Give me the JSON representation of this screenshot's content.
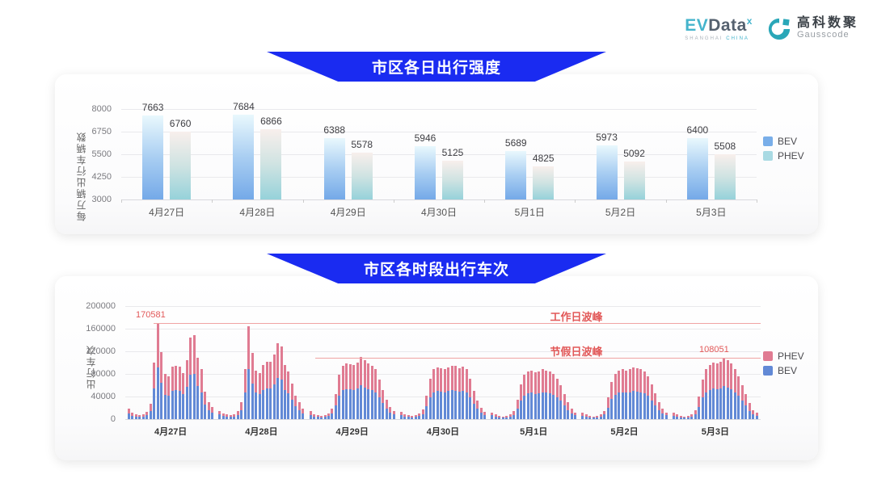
{
  "header": {
    "evdata": {
      "ev": "EV",
      "data": "Data",
      "sup": "x",
      "sub_left": "SHANGHAI",
      "sub_right": "CHINA"
    },
    "gausscode": {
      "cn_name": "高科数聚",
      "en_name": "Gausscode"
    }
  },
  "colors": {
    "banner_blue": "#1a2bf1",
    "annotation_red": "#e25858",
    "annotation_line_red": "#f0a3a3"
  },
  "chart_data": [
    {
      "type": "bar",
      "title": "市区各日出行强度",
      "ylabel": "每万辆出行车辆数",
      "ylim": [
        3000,
        8000
      ],
      "yticks": [
        3000,
        4250,
        5500,
        6750,
        8000
      ],
      "grid": true,
      "legend_position": "right",
      "categories": [
        "4月27日",
        "4月28日",
        "4月29日",
        "4月30日",
        "5月1日",
        "5月2日",
        "5月3日"
      ],
      "series": [
        {
          "name": "BEV",
          "values": [
            7663,
            7684,
            6388,
            5946,
            5689,
            5973,
            6400
          ]
        },
        {
          "name": "PHEV",
          "values": [
            6760,
            6866,
            5578,
            5125,
            4825,
            5092,
            5508
          ]
        }
      ],
      "legend": [
        {
          "name": "BEV",
          "color": "#79aee9"
        },
        {
          "name": "PHEV",
          "color": "#a9dae3"
        }
      ],
      "bev_gradient": [
        "#e9f8fd",
        "#a9cef2",
        "#74a9e8"
      ],
      "phev_gradient": [
        "#f8efec",
        "#cfe3e2",
        "#96d2da"
      ]
    },
    {
      "type": "bar",
      "stacked": true,
      "title": "市区各时段出行车次",
      "ylabel": "出行车次",
      "ylim": [
        0,
        200000
      ],
      "yticks": [
        0,
        40000,
        80000,
        120000,
        160000,
        200000
      ],
      "grid": true,
      "legend_position": "right",
      "x_unit": "hour-of-day, 24 bars per date",
      "legend": [
        {
          "name": "PHEV",
          "color": "#e07b92"
        },
        {
          "name": "BEV",
          "color": "#6289d6"
        }
      ],
      "annotations": [
        {
          "text": "工作日波峰",
          "value": 170581,
          "value_label": "170581"
        },
        {
          "text": "节假日波峰",
          "value": 108051,
          "value_label": "108051"
        }
      ],
      "days": [
        {
          "label": "4月27日",
          "bev": [
            9500,
            6000,
            4500,
            4000,
            4500,
            7000,
            14500,
            54000,
            92000,
            64000,
            43000,
            41000,
            50000,
            51500,
            50000,
            44500,
            57000,
            78500,
            80000,
            58500,
            47500,
            26000,
            16000,
            12000
          ],
          "phev": [
            8500,
            5000,
            3500,
            3000,
            3500,
            6000,
            12500,
            46000,
            78581,
            55000,
            37000,
            35000,
            43000,
            43500,
            43000,
            37500,
            48000,
            66500,
            68000,
            49500,
            40500,
            22000,
            14000,
            10000
          ]
        },
        {
          "label": "4月28日",
          "bev": [
            8000,
            5500,
            4500,
            4000,
            5000,
            7500,
            16000,
            47500,
            88500,
            63000,
            46500,
            44500,
            52000,
            54500,
            54500,
            62000,
            72500,
            69500,
            52000,
            46000,
            34000,
            22500,
            16000,
            9500
          ],
          "phev": [
            7000,
            4500,
            3500,
            3000,
            4000,
            6500,
            14000,
            40500,
            75500,
            54000,
            39500,
            37500,
            44000,
            46500,
            46500,
            53000,
            61500,
            59500,
            44000,
            39000,
            29000,
            19500,
            14000,
            8500
          ]
        },
        {
          "label": "4月29日",
          "bev": [
            7500,
            5000,
            4000,
            3000,
            4000,
            5500,
            9500,
            24500,
            42000,
            51500,
            53000,
            52500,
            52000,
            54000,
            59500,
            56000,
            53000,
            51500,
            47500,
            38000,
            28000,
            19000,
            12000,
            8000
          ],
          "phev": [
            6500,
            4000,
            3000,
            3000,
            3000,
            4500,
            8500,
            20500,
            36000,
            43500,
            45000,
            44500,
            44000,
            46000,
            50500,
            48000,
            45000,
            43500,
            40500,
            32000,
            24000,
            16000,
            10000,
            7000
          ]
        },
        {
          "label": "4月30日",
          "bev": [
            7000,
            5000,
            4000,
            3000,
            4000,
            5500,
            9000,
            22500,
            39000,
            47500,
            49500,
            48500,
            47500,
            49500,
            51500,
            50500,
            48500,
            50000,
            47500,
            39000,
            27000,
            18000,
            11000,
            7000
          ],
          "phev": [
            6000,
            4000,
            3000,
            3000,
            3000,
            4500,
            8000,
            19500,
            33000,
            40500,
            42500,
            41500,
            40500,
            42500,
            43500,
            43500,
            41500,
            43000,
            40500,
            33000,
            23000,
            15000,
            9000,
            6000
          ]
        },
        {
          "label": "5月1日",
          "bev": [
            6500,
            4500,
            3000,
            2500,
            3000,
            4500,
            7500,
            19000,
            33500,
            42000,
            45500,
            46500,
            45000,
            46000,
            47500,
            46500,
            45500,
            43000,
            39000,
            32500,
            24500,
            16000,
            9500,
            6500
          ],
          "phev": [
            5500,
            3500,
            3000,
            2500,
            3000,
            3500,
            6500,
            16000,
            28500,
            36000,
            38500,
            39500,
            38000,
            39000,
            40500,
            39500,
            38500,
            37000,
            33000,
            27500,
            20500,
            14000,
            8500,
            5500
          ]
        },
        {
          "label": "5月2日",
          "bev": [
            6000,
            4500,
            3000,
            2500,
            3000,
            4500,
            8000,
            20500,
            35500,
            43000,
            46500,
            47500,
            46500,
            47500,
            49500,
            48500,
            47500,
            46000,
            41000,
            33500,
            25000,
            16000,
            9500,
            6500
          ],
          "phev": [
            5000,
            3500,
            3000,
            2500,
            3000,
            3500,
            7000,
            17500,
            30500,
            37000,
            39500,
            40500,
            39500,
            40500,
            42500,
            41500,
            40500,
            39000,
            35000,
            28500,
            21000,
            14000,
            8500,
            5500
          ]
        },
        {
          "label": "5月3日",
          "bev": [
            6000,
            4500,
            3000,
            2500,
            3000,
            5000,
            8500,
            21500,
            38000,
            47500,
            52000,
            54000,
            53000,
            55000,
            58051,
            56000,
            53000,
            47500,
            41000,
            32500,
            24000,
            15000,
            8500,
            6000
          ],
          "phev": [
            5000,
            3500,
            3000,
            2500,
            3000,
            4000,
            7500,
            18500,
            32000,
            40500,
            44000,
            46000,
            45000,
            47000,
            50000,
            48000,
            45000,
            40500,
            35000,
            27500,
            20000,
            13000,
            7500,
            5000
          ]
        }
      ]
    }
  ]
}
